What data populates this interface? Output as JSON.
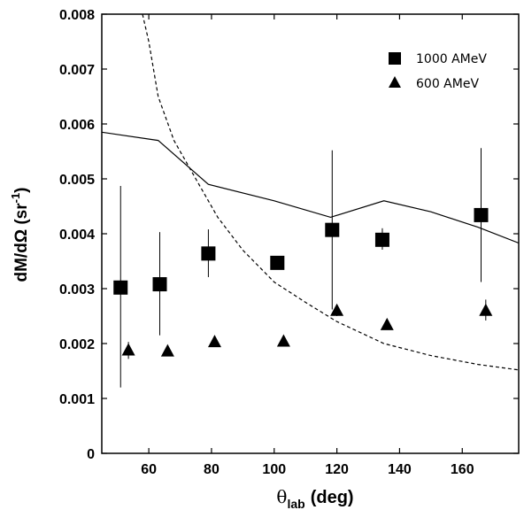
{
  "chart_data": {
    "type": "scatter",
    "title": "",
    "xlabel": {
      "symbol": "θ",
      "subscript": "lab",
      "unit": "(deg)"
    },
    "ylabel": {
      "prefix": "dM/dΩ (sr",
      "superscript": "-1",
      "suffix": ")"
    },
    "xlim": [
      45,
      178
    ],
    "ylim": [
      0,
      0.008
    ],
    "x_ticks": [
      60,
      80,
      100,
      120,
      140,
      160
    ],
    "x_tick_labels": [
      "60",
      "80",
      "100",
      "120",
      "140",
      "160"
    ],
    "y_ticks": [
      0,
      0.001,
      0.002,
      0.003,
      0.004,
      0.005,
      0.006,
      0.007,
      0.008
    ],
    "y_tick_labels": [
      "0",
      "0.001",
      "0.002",
      "0.003",
      "0.004",
      "0.005",
      "0.006",
      "0.007",
      "0.008"
    ],
    "grid": false,
    "legend_position": "top-right",
    "series": [
      {
        "name": "1000 AMeV",
        "marker": "square",
        "points": [
          {
            "x": 51,
            "y": 0.00302,
            "err_low": 0.0012,
            "err_high": 0.00487
          },
          {
            "x": 63.5,
            "y": 0.00308,
            "err_low": 0.00215,
            "err_high": 0.00403
          },
          {
            "x": 79,
            "y": 0.00364,
            "err_low": 0.00321,
            "err_high": 0.00408
          },
          {
            "x": 101,
            "y": 0.00347,
            "err_low": 0.00339,
            "err_high": 0.00359
          },
          {
            "x": 118.5,
            "y": 0.00407,
            "err_low": 0.00262,
            "err_high": 0.00552
          },
          {
            "x": 134.5,
            "y": 0.00389,
            "err_low": 0.00371,
            "err_high": 0.0041
          },
          {
            "x": 166,
            "y": 0.00434,
            "err_low": 0.00312,
            "err_high": 0.00556
          }
        ]
      },
      {
        "name": "600 AMeV",
        "marker": "triangle",
        "points": [
          {
            "x": 53.5,
            "y": 0.00188,
            "err_low": 0.00172,
            "err_high": 0.00203
          },
          {
            "x": 66,
            "y": 0.00186,
            "err_low": 0.0018,
            "err_high": 0.0019
          },
          {
            "x": 81,
            "y": 0.00203,
            "err_low": 0.00195,
            "err_high": 0.00208
          },
          {
            "x": 103,
            "y": 0.00204,
            "err_low": 0.002,
            "err_high": 0.00208
          },
          {
            "x": 120,
            "y": 0.0026,
            "err_low": 0.0025,
            "err_high": 0.00268
          },
          {
            "x": 136,
            "y": 0.00234,
            "err_low": 0.00228,
            "err_high": 0.0024
          },
          {
            "x": 167.5,
            "y": 0.0026,
            "err_low": 0.00242,
            "err_high": 0.0028
          }
        ]
      }
    ],
    "curves": [
      {
        "style": "solid",
        "x": [
          45,
          63,
          79,
          100,
          118,
          135,
          150,
          165,
          178
        ],
        "y": [
          0.00585,
          0.0057,
          0.0049,
          0.0046,
          0.0043,
          0.0046,
          0.0044,
          0.00412,
          0.00383
        ]
      },
      {
        "style": "dashed",
        "x": [
          58,
          60,
          63,
          68,
          75,
          82,
          90,
          100,
          110,
          120,
          135,
          150,
          165,
          178
        ],
        "y": [
          0.008,
          0.0075,
          0.0065,
          0.0057,
          0.005,
          0.0043,
          0.0037,
          0.00312,
          0.00275,
          0.0024,
          0.002,
          0.00178,
          0.00162,
          0.00152
        ]
      }
    ]
  }
}
